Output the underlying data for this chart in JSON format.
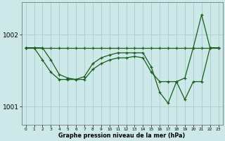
{
  "xlabel_label": "Graphe pression niveau de la mer (hPa)",
  "bg_color": "#cce8e8",
  "grid_color": "#aacccc",
  "line_color": "#1a5c1a",
  "hours": [
    0,
    1,
    2,
    3,
    4,
    5,
    6,
    7,
    8,
    9,
    10,
    11,
    12,
    13,
    14,
    15,
    16,
    17,
    18,
    19,
    20,
    21,
    22,
    23
  ],
  "series1": [
    1001.82,
    1001.82,
    1001.82,
    1001.82,
    1001.82,
    1001.82,
    1001.82,
    1001.82,
    1001.82,
    1001.82,
    1001.82,
    1001.82,
    1001.82,
    1001.82,
    1001.82,
    1001.82,
    1001.82,
    1001.82,
    1001.82,
    1001.82,
    1001.82,
    1001.82,
    1001.82,
    1001.82
  ],
  "series2": [
    1001.82,
    1001.82,
    1001.82,
    1001.65,
    1001.45,
    1001.4,
    1001.38,
    1001.42,
    1001.6,
    1001.68,
    1001.72,
    1001.75,
    1001.75,
    1001.75,
    1001.75,
    1001.55,
    1001.2,
    1001.05,
    1001.35,
    1001.4,
    1001.82,
    1002.28,
    1001.82,
    1001.82
  ],
  "series3": [
    1001.82,
    1001.82,
    1001.65,
    1001.48,
    1001.38,
    1001.38,
    1001.38,
    1001.38,
    1001.52,
    1001.6,
    1001.65,
    1001.68,
    1001.68,
    1001.7,
    1001.68,
    1001.48,
    1001.35,
    1001.35,
    1001.35,
    1001.1,
    1001.35,
    1001.35,
    1001.82,
    1001.82
  ],
  "ylim": [
    1000.75,
    1002.45
  ],
  "yticks": [
    1001.0,
    1002.0
  ],
  "ytick_labels": [
    "1001",
    "1002"
  ]
}
